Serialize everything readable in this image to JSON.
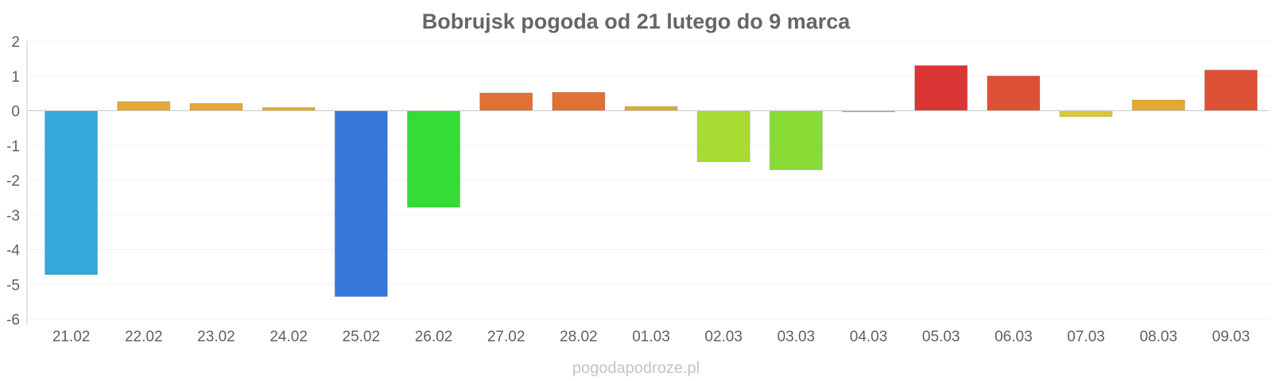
{
  "chart_data": {
    "type": "bar",
    "title": "Bobrujsk pogoda od 21 lutego do 9 marca",
    "xlabel": "",
    "ylabel": "",
    "categories": [
      "21.02",
      "22.02",
      "23.02",
      "24.02",
      "25.02",
      "26.02",
      "27.02",
      "28.02",
      "01.03",
      "02.03",
      "03.03",
      "04.03",
      "05.03",
      "06.03",
      "07.03",
      "08.03",
      "09.03"
    ],
    "values": [
      -4.72,
      0.26,
      0.21,
      0.09,
      -5.35,
      -2.78,
      0.51,
      0.53,
      0.12,
      -1.47,
      -1.7,
      -0.02,
      1.3,
      1.0,
      -0.17,
      0.31,
      1.17
    ],
    "colors": [
      "#35a8dc",
      "#e2a934",
      "#e2a934",
      "#e2a934",
      "#3678dc",
      "#35dc35",
      "#e07034",
      "#e07034",
      "#e2a934",
      "#a8dc35",
      "#89dc35",
      "#e2a934",
      "#dc3535",
      "#dc5135",
      "#dcc835",
      "#e2a934",
      "#dc5135"
    ],
    "ylim": [
      -6,
      2
    ],
    "yticks": [
      2,
      1,
      0,
      -1,
      -2,
      -3,
      -4,
      -5,
      -6
    ],
    "ytick_labels": [
      "2",
      "1",
      "0",
      "-1",
      "-2",
      "-3",
      "-4",
      "-5",
      "-6"
    ],
    "grid": true,
    "legend": "none"
  },
  "credit": "pogodapodroze.pl"
}
